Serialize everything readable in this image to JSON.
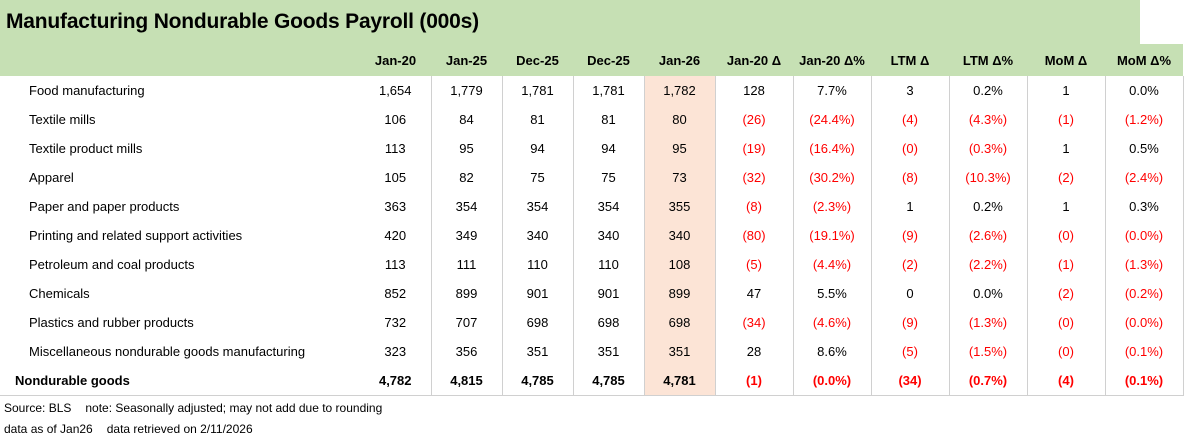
{
  "title": "Manufacturing Nondurable Goods Payroll (000s)",
  "columns": [
    "Jan-20",
    "Jan-25",
    "Dec-25",
    "Dec-25",
    "Jan-26",
    "Jan-20 Δ",
    "Jan-20 Δ%",
    "LTM Δ",
    "LTM Δ%",
    "MoM Δ",
    "MoM Δ%"
  ],
  "rows": [
    {
      "label": "Food manufacturing",
      "values": [
        "1,654",
        "1,779",
        "1,781",
        "1,781",
        "1,782",
        "128",
        "7.7%",
        "3",
        "0.2%",
        "1",
        "0.0%"
      ]
    },
    {
      "label": "Textile mills",
      "values": [
        "106",
        "84",
        "81",
        "81",
        "80",
        "(26)",
        "(24.4%)",
        "(4)",
        "(4.3%)",
        "(1)",
        "(1.2%)"
      ]
    },
    {
      "label": "Textile product mills",
      "values": [
        "113",
        "95",
        "94",
        "94",
        "95",
        "(19)",
        "(16.4%)",
        "(0)",
        "(0.3%)",
        "1",
        "0.5%"
      ]
    },
    {
      "label": "Apparel",
      "values": [
        "105",
        "82",
        "75",
        "75",
        "73",
        "(32)",
        "(30.2%)",
        "(8)",
        "(10.3%)",
        "(2)",
        "(2.4%)"
      ]
    },
    {
      "label": "Paper and paper products",
      "values": [
        "363",
        "354",
        "354",
        "354",
        "355",
        "(8)",
        "(2.3%)",
        "1",
        "0.2%",
        "1",
        "0.3%"
      ]
    },
    {
      "label": "Printing and related support activities",
      "values": [
        "420",
        "349",
        "340",
        "340",
        "340",
        "(80)",
        "(19.1%)",
        "(9)",
        "(2.6%)",
        "(0)",
        "(0.0%)"
      ]
    },
    {
      "label": "Petroleum and coal products",
      "values": [
        "113",
        "111",
        "110",
        "110",
        "108",
        "(5)",
        "(4.4%)",
        "(2)",
        "(2.2%)",
        "(1)",
        "(1.3%)"
      ]
    },
    {
      "label": "Chemicals",
      "values": [
        "852",
        "899",
        "901",
        "901",
        "899",
        "47",
        "5.5%",
        "0",
        "0.0%",
        "(2)",
        "(0.2%)"
      ]
    },
    {
      "label": "Plastics and rubber products",
      "values": [
        "732",
        "707",
        "698",
        "698",
        "698",
        "(34)",
        "(4.6%)",
        "(9)",
        "(1.3%)",
        "(0)",
        "(0.0%)"
      ]
    },
    {
      "label": "Miscellaneous nondurable goods manufacturing",
      "values": [
        "323",
        "356",
        "351",
        "351",
        "351",
        "28",
        "8.6%",
        "(5)",
        "(1.5%)",
        "(0)",
        "(0.1%)"
      ]
    }
  ],
  "total": {
    "label": "Nondurable goods",
    "values": [
      "4,782",
      "4,815",
      "4,785",
      "4,785",
      "4,781",
      "(1)",
      "(0.0%)",
      "(34)",
      "(0.7%)",
      "(4)",
      "(0.1%)"
    ]
  },
  "notes": {
    "source": "Source: BLS",
    "note": "note: Seasonally adjusted; may not add due to rounding",
    "data_as_of": "data as of Jan26",
    "retrieved": "data retrieved on 2/11/2026"
  },
  "colors": {
    "header_bg": "#c6e0b4",
    "highlight_bg": "#fce4d6",
    "negative": "#ff0000"
  }
}
